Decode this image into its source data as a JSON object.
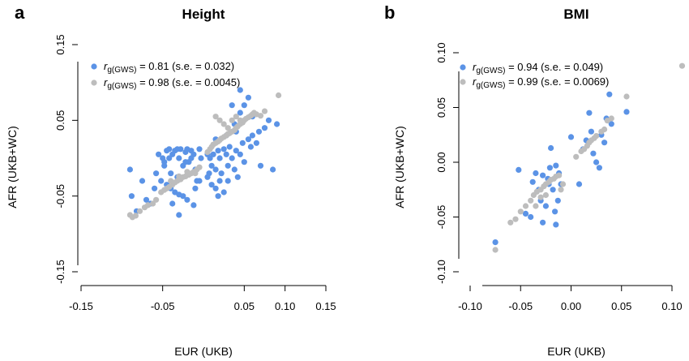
{
  "chart_data": [
    {
      "type": "scatter",
      "panel_label": "a",
      "title": "Height",
      "xlabel": "EUR (UKB)",
      "ylabel": "AFR (UKB+WC)",
      "xlim": [
        -0.15,
        0.15
      ],
      "ylim": [
        -0.15,
        0.15
      ],
      "x_ticks": [
        -0.15,
        -0.05,
        0.05,
        0.1,
        0.15
      ],
      "x_tick_labels": [
        "-0.15",
        "-0.05",
        "0.05",
        "0.10",
        "0.15"
      ],
      "y_ticks": [
        0.15,
        0.05,
        -0.05,
        -0.15
      ],
      "y_tick_labels": [
        "0.15",
        "0.05",
        "-0.05",
        "-0.15"
      ],
      "legend": [
        {
          "symbol": "r",
          "subscript": "g(GWS)",
          "text": " = 0.81  (s.e. = 0.032)",
          "color": "#5b93e6"
        },
        {
          "symbol": "r",
          "subscript": "g(GWS)",
          "text": " = 0.98  (s.e. = 0.0045)",
          "color": "#bdbdbd"
        }
      ],
      "series": [
        {
          "color": "#5b93e6",
          "points": [
            [
              -0.09,
              -0.015
            ],
            [
              -0.088,
              -0.05
            ],
            [
              -0.082,
              -0.07
            ],
            [
              -0.075,
              -0.03
            ],
            [
              -0.07,
              -0.055
            ],
            [
              -0.065,
              -0.06
            ],
            [
              -0.06,
              -0.04
            ],
            [
              -0.058,
              -0.02
            ],
            [
              -0.055,
              0.005
            ],
            [
              -0.052,
              -0.03
            ],
            [
              -0.05,
              0.0
            ],
            [
              -0.048,
              -0.01
            ],
            [
              -0.045,
              0.01
            ],
            [
              -0.042,
              0.0
            ],
            [
              -0.04,
              -0.02
            ],
            [
              -0.038,
              0.005
            ],
            [
              -0.035,
              0.01
            ],
            [
              -0.032,
              -0.025
            ],
            [
              -0.03,
              0.0
            ],
            [
              -0.028,
              0.012
            ],
            [
              -0.025,
              -0.01
            ],
            [
              -0.022,
              0.008
            ],
            [
              -0.02,
              0.012
            ],
            [
              -0.018,
              -0.005
            ],
            [
              -0.015,
              0.01
            ],
            [
              -0.012,
              0.005
            ],
            [
              -0.01,
              -0.015
            ],
            [
              -0.008,
              -0.03
            ],
            [
              -0.005,
              0.012
            ],
            [
              -0.003,
              0.0
            ],
            [
              -0.045,
              -0.035
            ],
            [
              -0.04,
              -0.04
            ],
            [
              -0.035,
              -0.045
            ],
            [
              -0.03,
              -0.048
            ],
            [
              -0.025,
              -0.05
            ],
            [
              -0.02,
              -0.055
            ],
            [
              -0.038,
              -0.06
            ],
            [
              -0.03,
              -0.075
            ],
            [
              -0.012,
              -0.062
            ],
            [
              -0.01,
              -0.04
            ],
            [
              -0.005,
              -0.03
            ],
            [
              -0.042,
              0.012
            ],
            [
              -0.032,
              0.012
            ],
            [
              -0.022,
              -0.005
            ],
            [
              -0.015,
              0.0
            ],
            [
              -0.048,
              -0.005
            ],
            [
              0.005,
              0.005
            ],
            [
              0.008,
              0.0
            ],
            [
              0.01,
              -0.01
            ],
            [
              0.012,
              0.005
            ],
            [
              0.015,
              -0.015
            ],
            [
              0.018,
              0.01
            ],
            [
              0.02,
              0.0
            ],
            [
              0.022,
              -0.02
            ],
            [
              0.025,
              0.012
            ],
            [
              0.028,
              0.005
            ],
            [
              0.03,
              -0.01
            ],
            [
              0.032,
              0.015
            ],
            [
              0.035,
              0.0
            ],
            [
              0.038,
              -0.015
            ],
            [
              0.04,
              0.01
            ],
            [
              0.042,
              -0.025
            ],
            [
              0.045,
              0.005
            ],
            [
              0.048,
              0.02
            ],
            [
              0.05,
              -0.005
            ],
            [
              0.055,
              0.025
            ],
            [
              0.058,
              0.015
            ],
            [
              0.06,
              0.03
            ],
            [
              0.065,
              0.02
            ],
            [
              0.068,
              0.035
            ],
            [
              0.07,
              -0.01
            ],
            [
              0.075,
              0.04
            ],
            [
              0.08,
              0.05
            ],
            [
              0.085,
              -0.015
            ],
            [
              0.09,
              0.045
            ],
            [
              0.005,
              -0.025
            ],
            [
              0.01,
              -0.035
            ],
            [
              0.015,
              -0.04
            ],
            [
              0.02,
              -0.03
            ],
            [
              0.025,
              -0.045
            ],
            [
              0.035,
              0.07
            ],
            [
              0.038,
              0.045
            ],
            [
              0.028,
              0.03
            ],
            [
              0.015,
              0.025
            ],
            [
              0.045,
              0.06
            ],
            [
              0.05,
              0.07
            ],
            [
              0.055,
              0.08
            ],
            [
              0.06,
              0.055
            ],
            [
              0.045,
              0.09
            ],
            [
              0.018,
              -0.05
            ],
            [
              0.007,
              -0.02
            ],
            [
              0.03,
              -0.03
            ],
            [
              0.04,
              0.035
            ]
          ]
        },
        {
          "color": "#bdbdbd",
          "points": [
            [
              -0.09,
              -0.075
            ],
            [
              -0.087,
              -0.078
            ],
            [
              -0.083,
              -0.076
            ],
            [
              -0.078,
              -0.07
            ],
            [
              -0.072,
              -0.065
            ],
            [
              -0.068,
              -0.062
            ],
            [
              -0.062,
              -0.06
            ],
            [
              -0.058,
              -0.055
            ],
            [
              -0.052,
              -0.045
            ],
            [
              -0.048,
              -0.042
            ],
            [
              -0.045,
              -0.04
            ],
            [
              -0.042,
              -0.038
            ],
            [
              -0.038,
              -0.035
            ],
            [
              -0.035,
              -0.032
            ],
            [
              -0.032,
              -0.03
            ],
            [
              -0.028,
              -0.028
            ],
            [
              -0.025,
              -0.025
            ],
            [
              -0.022,
              -0.024
            ],
            [
              -0.018,
              -0.022
            ],
            [
              -0.015,
              -0.02
            ],
            [
              -0.012,
              -0.018
            ],
            [
              -0.008,
              -0.015
            ],
            [
              -0.005,
              -0.012
            ],
            [
              -0.04,
              -0.03
            ],
            [
              -0.03,
              -0.024
            ],
            [
              -0.02,
              -0.018
            ],
            [
              -0.01,
              -0.02
            ],
            [
              0.005,
              0.008
            ],
            [
              0.008,
              0.012
            ],
            [
              0.01,
              0.015
            ],
            [
              0.012,
              0.018
            ],
            [
              0.015,
              0.02
            ],
            [
              0.018,
              0.022
            ],
            [
              0.02,
              0.024
            ],
            [
              0.022,
              0.026
            ],
            [
              0.025,
              0.028
            ],
            [
              0.028,
              0.03
            ],
            [
              0.03,
              0.032
            ],
            [
              0.032,
              0.033
            ],
            [
              0.035,
              0.035
            ],
            [
              0.038,
              0.037
            ],
            [
              0.04,
              0.04
            ],
            [
              0.042,
              0.042
            ],
            [
              0.045,
              0.045
            ],
            [
              0.048,
              0.047
            ],
            [
              0.05,
              0.05
            ],
            [
              0.052,
              0.052
            ],
            [
              0.055,
              0.054
            ],
            [
              0.058,
              0.056
            ],
            [
              0.06,
              0.058
            ],
            [
              0.062,
              0.06
            ],
            [
              0.065,
              0.058
            ],
            [
              0.07,
              0.056
            ],
            [
              0.075,
              0.062
            ],
            [
              0.092,
              0.083
            ],
            [
              0.015,
              0.055
            ],
            [
              0.02,
              0.05
            ],
            [
              0.025,
              0.045
            ],
            [
              0.03,
              0.04
            ],
            [
              0.035,
              0.05
            ],
            [
              0.04,
              0.055
            ],
            [
              0.045,
              0.05
            ]
          ]
        }
      ]
    },
    {
      "type": "scatter",
      "panel_label": "b",
      "title": "BMI",
      "xlabel": "EUR (UKB)",
      "ylabel": "AFR (UKB+WC)",
      "xlim": [
        -0.1,
        0.1
      ],
      "ylim": [
        -0.1,
        0.1
      ],
      "x_ticks": [
        -0.1,
        -0.05,
        0.0,
        0.05,
        0.1
      ],
      "x_tick_labels": [
        "-0.10",
        "-0.05",
        "0.00",
        "0.05",
        "0.10"
      ],
      "y_ticks": [
        0.1,
        0.05,
        0.0,
        -0.05,
        -0.1
      ],
      "y_tick_labels": [
        "0.10",
        "0.05",
        "0.00",
        "-0.05",
        "-0.10"
      ],
      "legend": [
        {
          "symbol": "r",
          "subscript": "g(GWS)",
          "text": " = 0.94  (s.e. = 0.049)",
          "color": "#5b93e6"
        },
        {
          "symbol": "r",
          "subscript": "g(GWS)",
          "text": " = 0.99  (s.e. = 0.0069)",
          "color": "#bdbdbd"
        }
      ],
      "series": [
        {
          "color": "#5b93e6",
          "points": [
            [
              -0.075,
              -0.073
            ],
            [
              -0.052,
              -0.007
            ],
            [
              -0.045,
              -0.047
            ],
            [
              -0.04,
              -0.05
            ],
            [
              -0.038,
              -0.018
            ],
            [
              -0.035,
              -0.01
            ],
            [
              -0.032,
              -0.025
            ],
            [
              -0.03,
              -0.035
            ],
            [
              -0.028,
              -0.055
            ],
            [
              -0.025,
              -0.04
            ],
            [
              -0.023,
              -0.015
            ],
            [
              -0.021,
              -0.005
            ],
            [
              -0.02,
              0.013
            ],
            [
              -0.018,
              -0.025
            ],
            [
              -0.016,
              -0.045
            ],
            [
              -0.015,
              -0.057
            ],
            [
              -0.013,
              -0.035
            ],
            [
              -0.012,
              -0.01
            ],
            [
              -0.01,
              -0.02
            ],
            [
              -0.015,
              -0.003
            ],
            [
              -0.022,
              -0.02
            ],
            [
              -0.028,
              -0.012
            ],
            [
              0.0,
              0.023
            ],
            [
              0.008,
              -0.02
            ],
            [
              0.012,
              0.012
            ],
            [
              0.015,
              0.02
            ],
            [
              0.018,
              0.045
            ],
            [
              0.02,
              0.028
            ],
            [
              0.022,
              0.008
            ],
            [
              0.025,
              0.0
            ],
            [
              0.028,
              -0.005
            ],
            [
              0.03,
              0.025
            ],
            [
              0.033,
              0.018
            ],
            [
              0.035,
              0.04
            ],
            [
              0.038,
              0.062
            ],
            [
              0.04,
              0.035
            ],
            [
              0.055,
              0.046
            ]
          ]
        },
        {
          "color": "#bdbdbd",
          "points": [
            [
              -0.075,
              -0.08
            ],
            [
              -0.06,
              -0.055
            ],
            [
              -0.055,
              -0.052
            ],
            [
              -0.05,
              -0.045
            ],
            [
              -0.045,
              -0.04
            ],
            [
              -0.04,
              -0.035
            ],
            [
              -0.037,
              -0.03
            ],
            [
              -0.034,
              -0.027
            ],
            [
              -0.03,
              -0.025
            ],
            [
              -0.027,
              -0.022
            ],
            [
              -0.025,
              -0.02
            ],
            [
              -0.022,
              -0.018
            ],
            [
              -0.02,
              -0.016
            ],
            [
              -0.017,
              -0.015
            ],
            [
              -0.015,
              -0.013
            ],
            [
              -0.012,
              -0.012
            ],
            [
              -0.01,
              -0.025
            ],
            [
              -0.008,
              -0.02
            ],
            [
              -0.035,
              -0.04
            ],
            [
              -0.03,
              -0.032
            ],
            [
              -0.025,
              -0.03
            ],
            [
              0.005,
              0.005
            ],
            [
              0.01,
              0.01
            ],
            [
              0.013,
              0.012
            ],
            [
              0.016,
              0.015
            ],
            [
              0.018,
              0.018
            ],
            [
              0.02,
              0.02
            ],
            [
              0.023,
              0.022
            ],
            [
              0.025,
              0.024
            ],
            [
              0.03,
              0.028
            ],
            [
              0.033,
              0.03
            ],
            [
              0.036,
              0.038
            ],
            [
              0.04,
              0.04
            ],
            [
              0.055,
              0.06
            ],
            [
              0.11,
              0.088
            ]
          ]
        }
      ]
    }
  ]
}
